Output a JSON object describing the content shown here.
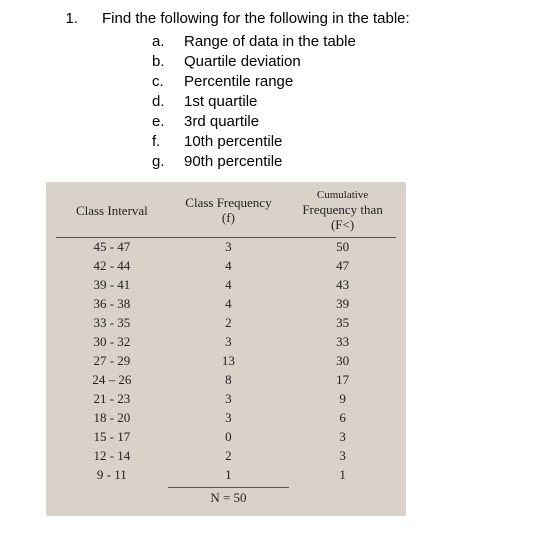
{
  "question": {
    "number": "1.",
    "text": "Find the following for the following in the table:"
  },
  "subitems": [
    {
      "letter": "a.",
      "text": "Range of data in the table"
    },
    {
      "letter": "b.",
      "text": "Quartile deviation"
    },
    {
      "letter": "c.",
      "text": "Percentile range"
    },
    {
      "letter": "d.",
      "text": "1st quartile"
    },
    {
      "letter": "e.",
      "text": "3rd quartile"
    },
    {
      "letter": "f.",
      "text": "10th percentile"
    },
    {
      "letter": "g.",
      "text": "90th percentile"
    }
  ],
  "table": {
    "background_color": "#d8d2c8",
    "headers": {
      "col1": "Class Interval",
      "col2_line1": "Class Frequency",
      "col2_line2": "(f)",
      "col3_line0": "Cumulative",
      "col3_line1": "Frequency than",
      "col3_line2": "(F<)"
    },
    "rows": [
      {
        "interval": "45 - 47",
        "freq": "3",
        "cum": "50"
      },
      {
        "interval": "42 - 44",
        "freq": "4",
        "cum": "47"
      },
      {
        "interval": "39 - 41",
        "freq": "4",
        "cum": "43"
      },
      {
        "interval": "36 - 38",
        "freq": "4",
        "cum": "39"
      },
      {
        "interval": "33 - 35",
        "freq": "2",
        "cum": "35"
      },
      {
        "interval": "30 - 32",
        "freq": "3",
        "cum": "33"
      },
      {
        "interval": "27 - 29",
        "freq": "13",
        "cum": "30"
      },
      {
        "interval": "24 – 26",
        "freq": "8",
        "cum": "17"
      },
      {
        "interval": "21 - 23",
        "freq": "3",
        "cum": "9"
      },
      {
        "interval": "18 - 20",
        "freq": "3",
        "cum": "6"
      },
      {
        "interval": "15 - 17",
        "freq": "0",
        "cum": "3"
      },
      {
        "interval": "12 - 14",
        "freq": "2",
        "cum": "3"
      },
      {
        "interval": "9 - 11",
        "freq": "1",
        "cum": "1"
      }
    ],
    "total_label": "N = 50"
  }
}
